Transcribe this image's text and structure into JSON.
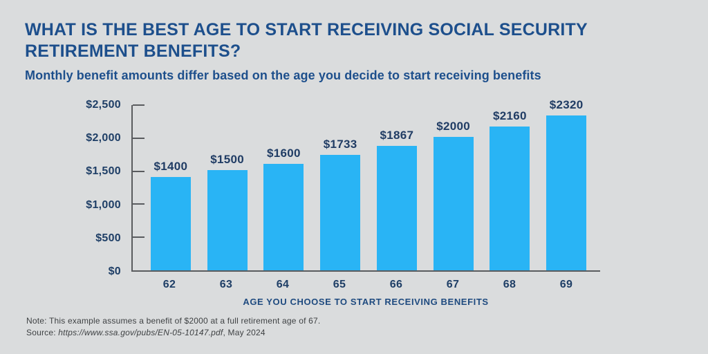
{
  "header": {
    "title": "WHAT IS THE BEST AGE TO START RECEIVING SOCIAL SECURITY RETIREMENT BENEFITS?",
    "subtitle": "Monthly benefit amounts differ based on the age you decide to start receiving benefits"
  },
  "colors": {
    "background": "#dadcdd",
    "title_blue": "#1d4f8c",
    "label_navy": "#1e3e66",
    "bar_blue": "#29b4f5",
    "axis_gray": "#595b5e",
    "note_gray": "#3e4143"
  },
  "chart_data": {
    "type": "bar",
    "categories": [
      "62",
      "63",
      "64",
      "65",
      "66",
      "67",
      "68",
      "69"
    ],
    "values": [
      1400,
      1500,
      1600,
      1733,
      1867,
      2000,
      2160,
      2320
    ],
    "value_labels": [
      "$1400",
      "$1500",
      "$1600",
      "$1733",
      "$1867",
      "$2000",
      "$2160",
      "$2320"
    ],
    "y_ticks": [
      "$2,500",
      "$2,000",
      "$1,500",
      "$1,000",
      "$500",
      "$0"
    ],
    "ylim": [
      0,
      2500
    ],
    "xlabel": "AGE YOU CHOOSE TO START RECEIVING BENEFITS",
    "ylabel": "",
    "grid": false,
    "legend": false
  },
  "footer": {
    "note": "Note: This example assumes a benefit of $2000 at a full retirement age of 67.",
    "source_label": "Source: ",
    "source_url": "https://www.ssa.gov/pubs/EN-05-10147.pdf",
    "source_date": ", May 2024"
  }
}
